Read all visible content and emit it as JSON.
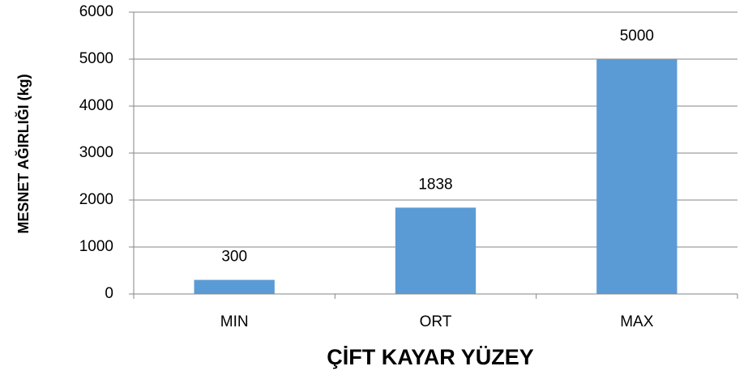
{
  "chart_data": {
    "type": "bar",
    "x_label": "ÇİFT KAYAR YÜZEY",
    "y_label": "MESNET AĞIRLIĞI (kg)",
    "categories": [
      "MIN",
      "ORT",
      "MAX"
    ],
    "values": [
      300,
      1838,
      5000
    ],
    "color": "#5b9bd5",
    "ylim": [
      0,
      6000
    ],
    "yticks": [
      0,
      1000,
      2000,
      3000,
      4000,
      5000,
      6000
    ],
    "grid": true,
    "data_labels": true
  }
}
